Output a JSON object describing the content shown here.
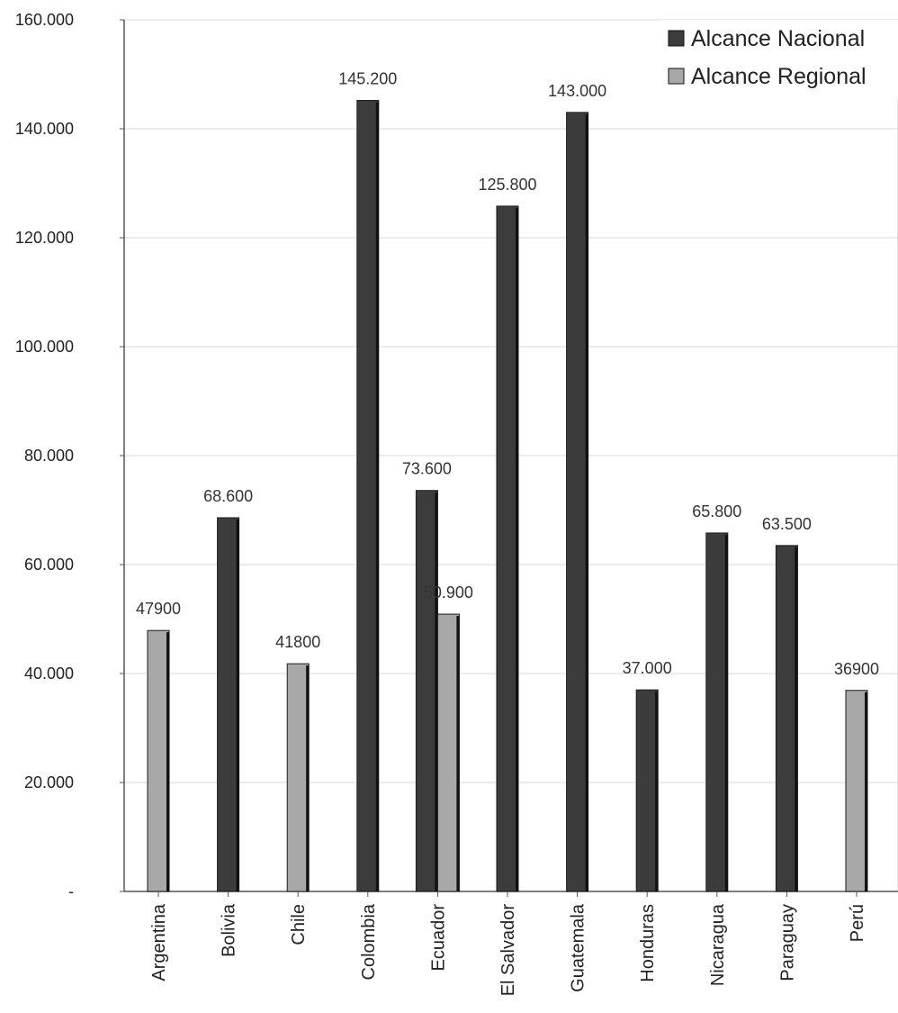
{
  "chart_data": {
    "type": "bar",
    "title": "",
    "xlabel": "",
    "ylabel": "",
    "ylim": [
      0,
      160000
    ],
    "yticks": [
      {
        "value": 0,
        "label": "-"
      },
      {
        "value": 20000,
        "label": "20.000"
      },
      {
        "value": 40000,
        "label": "40.000"
      },
      {
        "value": 60000,
        "label": "60.000"
      },
      {
        "value": 80000,
        "label": "80.000"
      },
      {
        "value": 100000,
        "label": "100.000"
      },
      {
        "value": 120000,
        "label": "120.000"
      },
      {
        "value": 140000,
        "label": "140.000"
      },
      {
        "value": 160000,
        "label": "160.000"
      }
    ],
    "grid": true,
    "legend_position": "top-right",
    "categories": [
      "Argentina",
      "Bolivia",
      "Chile",
      "Colombia",
      "Ecuador",
      "El Salvador",
      "Guatemala",
      "Honduras",
      "Nicaragua",
      "Paraguay",
      "Perú"
    ],
    "series": [
      {
        "name": "Alcance Nacional",
        "color": "#3c3c3c",
        "values": [
          null,
          68600,
          null,
          145200,
          73600,
          125800,
          143000,
          37000,
          65800,
          63500,
          null
        ],
        "labels": [
          null,
          "68.600",
          null,
          "145.200",
          "73.600",
          "125.800",
          "143.000",
          "37.000",
          "65.800",
          "63.500",
          null
        ]
      },
      {
        "name": "Alcance Regional",
        "color": "#a8a8a8",
        "values": [
          47900,
          null,
          41800,
          null,
          50900,
          null,
          null,
          null,
          null,
          null,
          36900
        ],
        "labels": [
          "47900",
          null,
          "41800",
          null,
          "50.900",
          null,
          null,
          null,
          null,
          null,
          "36900"
        ]
      }
    ]
  }
}
